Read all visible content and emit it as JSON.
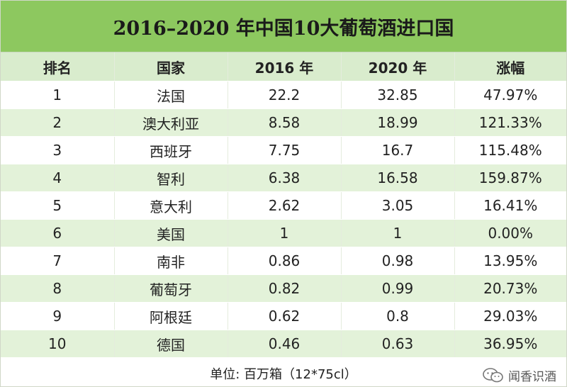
{
  "title": "2016–2020 年中国10大葡萄酒进口国",
  "table": {
    "headers": [
      "排名",
      "国家",
      "2016 年",
      "2020 年",
      "涨幅"
    ],
    "rows": [
      [
        "1",
        "法国",
        "22.2",
        "32.85",
        "47.97%"
      ],
      [
        "2",
        "澳大利亚",
        "8.58",
        "18.99",
        "121.33%"
      ],
      [
        "3",
        "西班牙",
        "7.75",
        "16.7",
        "115.48%"
      ],
      [
        "4",
        "智利",
        "6.38",
        "16.58",
        "159.87%"
      ],
      [
        "5",
        "意大利",
        "2.62",
        "3.05",
        "16.41%"
      ],
      [
        "6",
        "美国",
        "1",
        "1",
        "0.00%"
      ],
      [
        "7",
        "南非",
        "0.86",
        "0.98",
        "13.95%"
      ],
      [
        "8",
        "葡萄牙",
        "0.82",
        "0.99",
        "20.73%"
      ],
      [
        "9",
        "阿根廷",
        "0.62",
        "0.8",
        "29.03%"
      ],
      [
        "10",
        "德国",
        "0.46",
        "0.63",
        "36.95%"
      ]
    ]
  },
  "footer": "单位: 百万箱（12*75cl）",
  "watermark": "闻香识酒",
  "colors": {
    "title_bg": "#8dc85f",
    "header_bg": "#d9eccd",
    "stripe": "#e3f2d9"
  }
}
